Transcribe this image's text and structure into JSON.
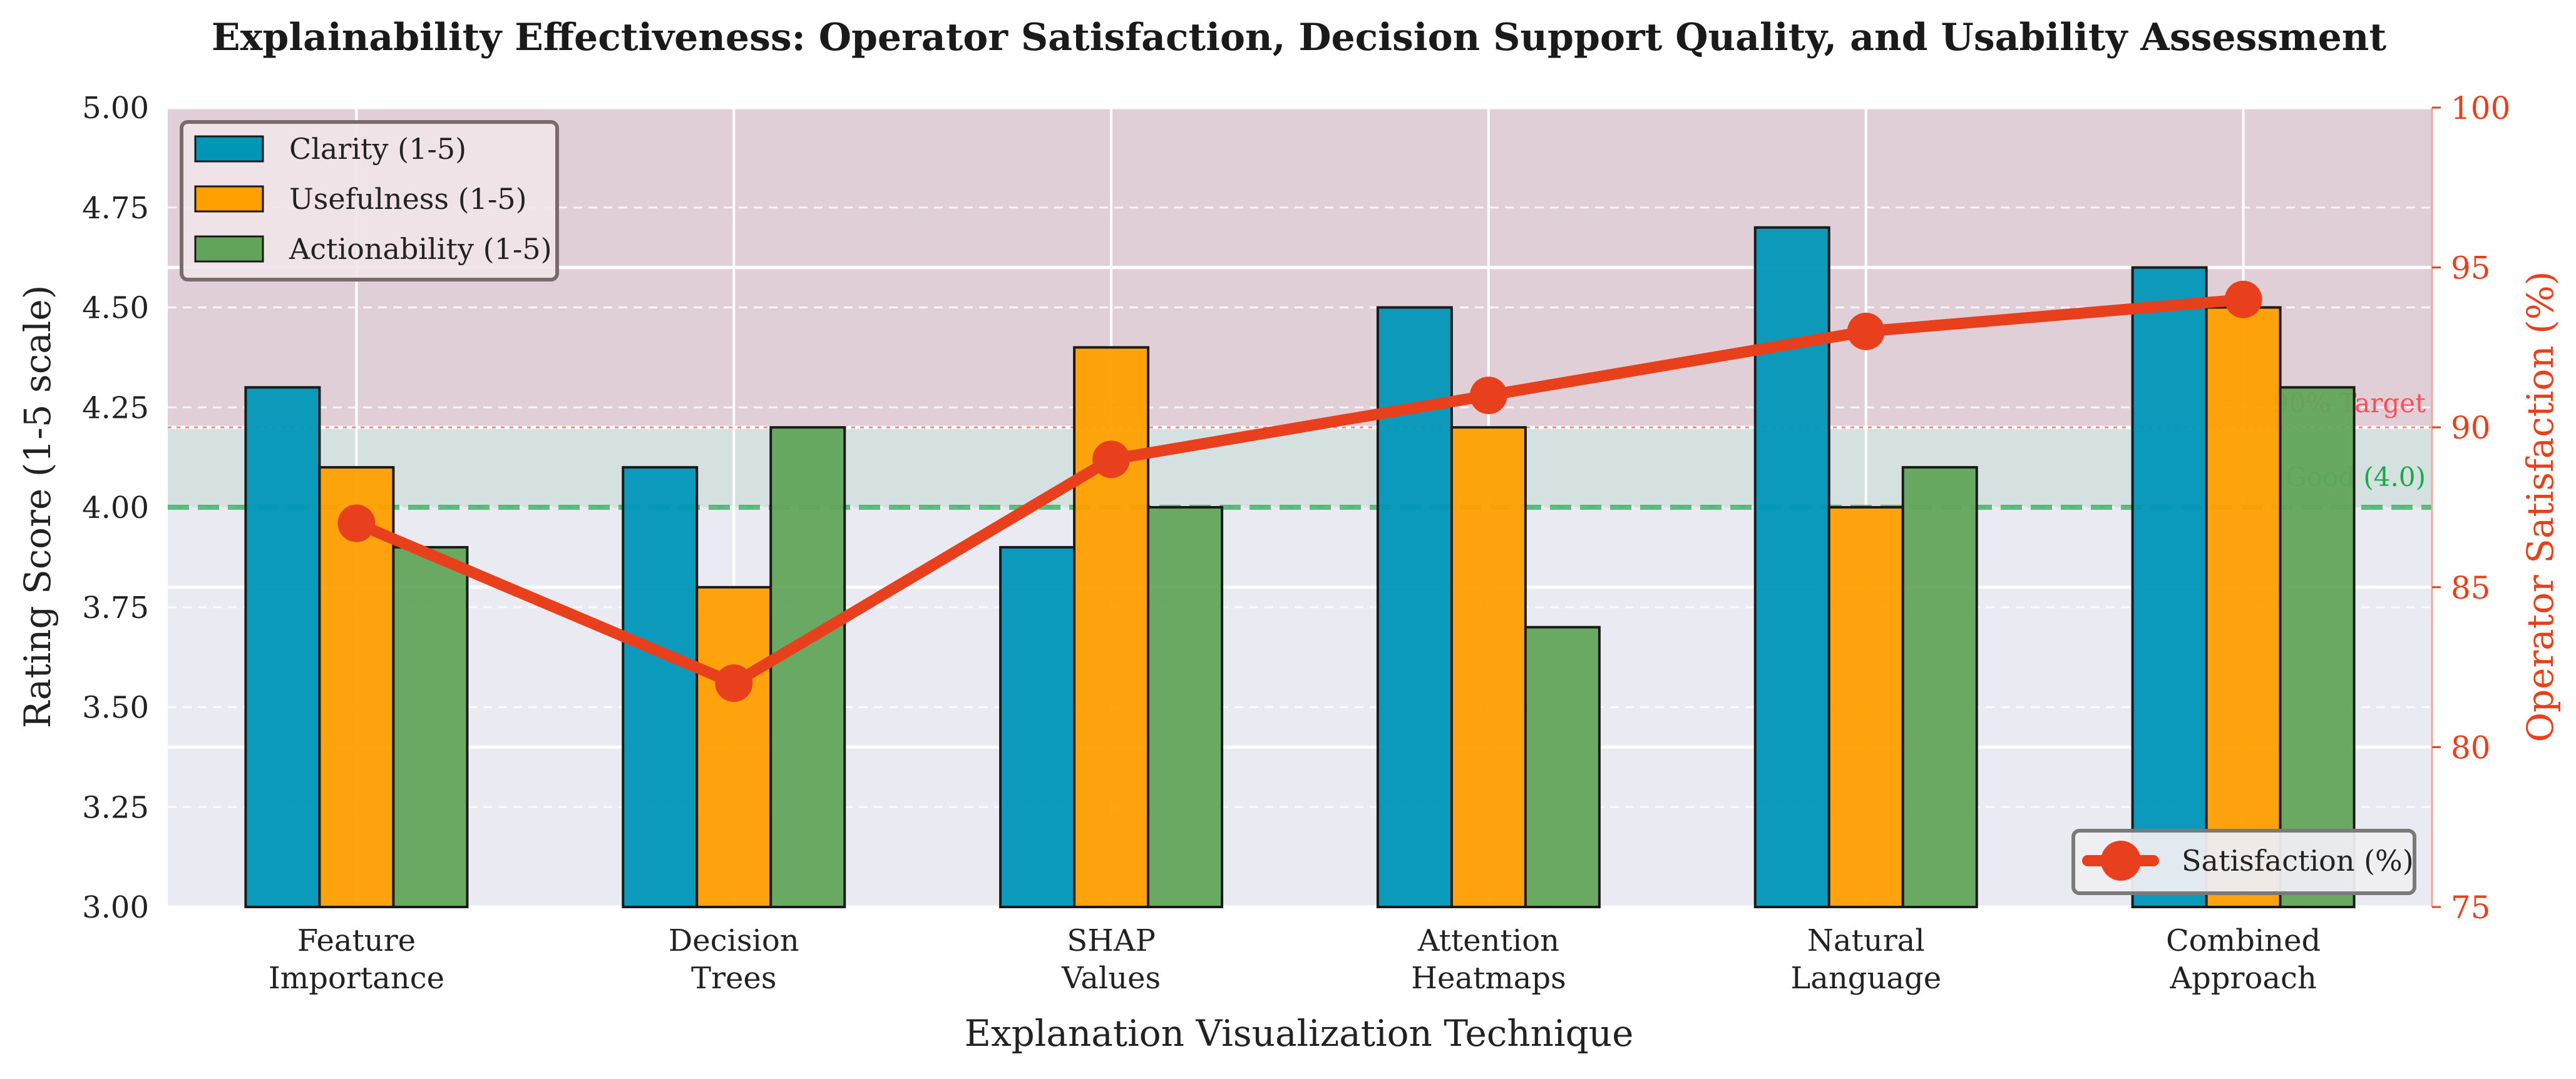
{
  "chart_data": {
    "type": "bar",
    "title": "Explainability Effectiveness: Operator Satisfaction, Decision Support Quality, and Usability Assessment",
    "xlabel": "Explanation Visualization Technique",
    "ylabel": "Rating Score (1-5 scale)",
    "y2label": "Operator Satisfaction (%)",
    "ylim": [
      3.0,
      5.0
    ],
    "y2lim": [
      75,
      100
    ],
    "yticks": [
      "3.00",
      "3.25",
      "3.50",
      "3.75",
      "4.00",
      "4.25",
      "4.50",
      "4.75",
      "5.00"
    ],
    "y2ticks": [
      "75",
      "80",
      "85",
      "90",
      "95",
      "100"
    ],
    "categories": [
      [
        "Feature",
        "Importance"
      ],
      [
        "Decision",
        "Trees"
      ],
      [
        "SHAP",
        "Values"
      ],
      [
        "Attention",
        "Heatmaps"
      ],
      [
        "Natural",
        "Language"
      ],
      [
        "Combined",
        "Approach"
      ]
    ],
    "series": [
      {
        "name": "Clarity (1-5)",
        "color": "#0096b8",
        "values": [
          4.3,
          4.1,
          3.9,
          4.5,
          4.7,
          4.6
        ]
      },
      {
        "name": "Usefulness (1-5)",
        "color": "#ff9f00",
        "values": [
          4.1,
          3.8,
          4.4,
          4.2,
          4.0,
          4.5
        ]
      },
      {
        "name": "Actionability (1-5)",
        "color": "#62a55a",
        "values": [
          3.9,
          4.2,
          4.0,
          3.7,
          4.1,
          4.3
        ]
      }
    ],
    "line_series": {
      "name": "Satisfaction (%)",
      "color": "#e8401c",
      "axis": "right",
      "values": [
        87.0,
        82.0,
        89.0,
        91.0,
        93.0,
        94.0
      ]
    },
    "reference_lines": [
      {
        "label": "90% Target",
        "axis": "right",
        "value": 90,
        "color": "#ff4d5a"
      },
      {
        "label": "Good (4.0)",
        "axis": "left",
        "value": 4.0,
        "color": "#1aa84a"
      }
    ],
    "legend_position": "upper-left",
    "legend2_position": "lower-right",
    "grid": true
  }
}
